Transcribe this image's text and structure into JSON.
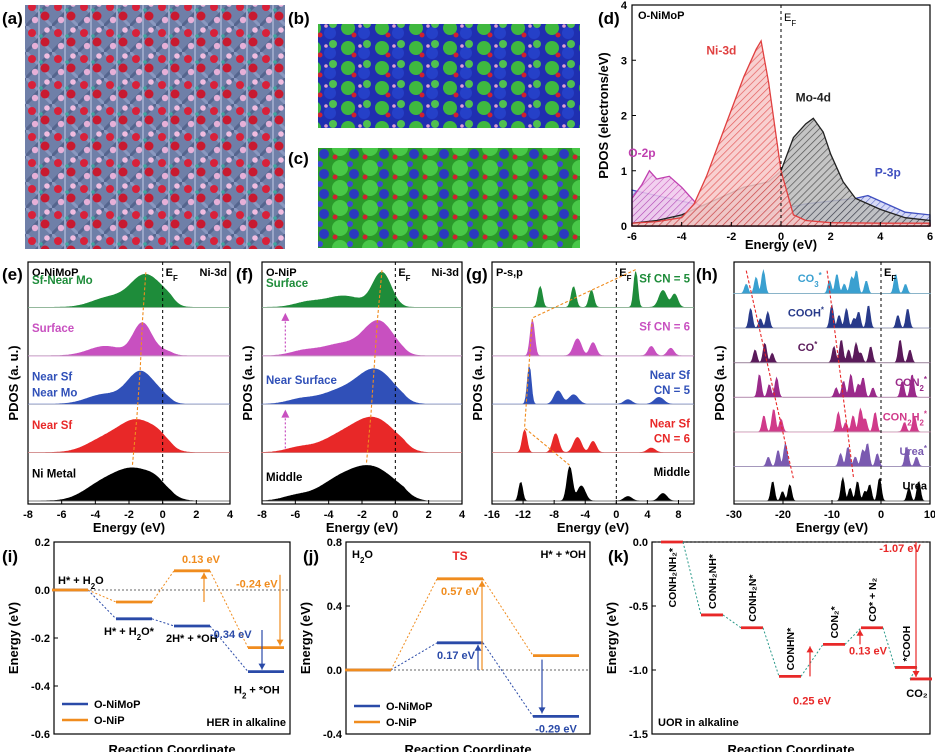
{
  "panels": {
    "a": {
      "label": "(a)"
    },
    "b": {
      "label": "(b)"
    },
    "c": {
      "label": "(c)"
    },
    "d": {
      "label": "(d)"
    },
    "e": {
      "label": "(e)"
    },
    "f": {
      "label": "(f)"
    },
    "g": {
      "label": "(g)"
    },
    "h": {
      "label": "(h)"
    },
    "i": {
      "label": "(i)"
    },
    "j": {
      "label": "(j)"
    },
    "k": {
      "label": "(k)"
    }
  },
  "colors": {
    "ni": "#e04040",
    "mo": "#222222",
    "o": "#c040b0",
    "p": "#4050c0",
    "green": "#1e8c3a",
    "magenta": "#c850c0",
    "blue": "#3050b8",
    "red": "#e82828",
    "black": "#000000",
    "nimop": "#2a4aa8",
    "nip": "#f08c1e"
  },
  "chart_data": [
    {
      "panel": "d",
      "type": "area",
      "title": "O-NiMoP",
      "xlabel": "Energy (eV)",
      "ylabel": "PDOS (electrons/eV)",
      "xlim": [
        -6,
        6
      ],
      "ylim": [
        0,
        4
      ],
      "xticks": [
        "-6",
        "-4",
        "-2",
        "0",
        "2",
        "4",
        "6"
      ],
      "yticks": [
        "0",
        "1",
        "2",
        "3",
        "4"
      ],
      "fermi_label": "E",
      "fermi_sub": "F",
      "series": [
        {
          "name": "Ni-3d",
          "x": [
            -6,
            -5,
            -4,
            -3.5,
            -3,
            -2.5,
            -2,
            -1.5,
            -1,
            -0.8,
            -0.5,
            0,
            0.5,
            1,
            2,
            4,
            6
          ],
          "y": [
            0.05,
            0.08,
            0.15,
            0.4,
            0.9,
            1.5,
            2.1,
            2.7,
            3.2,
            3.35,
            2.6,
            1.0,
            0.2,
            0.1,
            0.06,
            0.05,
            0.05
          ]
        },
        {
          "name": "Mo-4d",
          "x": [
            -6,
            -5,
            -4,
            -3,
            -2,
            -1.5,
            -1,
            -0.5,
            0,
            0.5,
            1,
            1.3,
            1.7,
            2,
            2.5,
            3,
            4,
            5,
            6
          ],
          "y": [
            0.05,
            0.1,
            0.2,
            0.4,
            0.6,
            0.7,
            0.75,
            0.8,
            1.0,
            1.6,
            1.85,
            1.95,
            1.7,
            1.3,
            0.8,
            0.5,
            0.3,
            0.15,
            0.1
          ]
        },
        {
          "name": "O-2p",
          "x": [
            -6,
            -5.6,
            -5.3,
            -5,
            -4.5,
            -4,
            -3.5,
            -3,
            -2,
            -1,
            0,
            2,
            4,
            6
          ],
          "y": [
            0.5,
            0.75,
            1.0,
            0.85,
            0.9,
            0.7,
            0.45,
            0.25,
            0.12,
            0.08,
            0.05,
            0.04,
            0.03,
            0.03
          ]
        },
        {
          "name": "P-3p",
          "x": [
            -6,
            -5,
            -4,
            -3,
            -2,
            -1,
            0,
            1,
            2,
            3,
            3.5,
            4,
            5,
            6
          ],
          "y": [
            0.65,
            0.55,
            0.45,
            0.35,
            0.3,
            0.25,
            0.3,
            0.4,
            0.45,
            0.5,
            0.55,
            0.45,
            0.25,
            0.2
          ]
        }
      ]
    },
    {
      "panel": "e",
      "type": "area",
      "title": "O-NiMoP",
      "orbital": "Ni-3d",
      "xlabel": "Energy (eV)",
      "ylabel": "PDOS (a. u.)",
      "xlim": [
        -8,
        4
      ],
      "xticks": [
        "-8",
        "-6",
        "-4",
        "-2",
        "0",
        "2",
        "4"
      ],
      "fermi_label": "E",
      "fermi_sub": "F",
      "series": [
        {
          "name": "Sf-Near Mo",
          "color": "#1e8c3a",
          "peak": -1.0
        },
        {
          "name": "Surface",
          "color": "#c850c0",
          "peak": -1.2
        },
        {
          "name": "Near Sf Near Mo",
          "color": "#3050b8",
          "peak": -1.3
        },
        {
          "name": "Near Sf",
          "color": "#e82828",
          "peak": -1.5
        },
        {
          "name": "Ni Metal",
          "color": "#000000",
          "peak": -1.7
        }
      ]
    },
    {
      "panel": "f",
      "type": "area",
      "title": "O-NiP",
      "orbital": "Ni-3d",
      "xlabel": "Energy (eV)",
      "ylabel": "PDOS (a. u.)",
      "xlim": [
        -8,
        4
      ],
      "xticks": [
        "-8",
        "-6",
        "-4",
        "-2",
        "0",
        "2",
        "4"
      ],
      "fermi_label": "E",
      "fermi_sub": "F",
      "series": [
        {
          "name": "Surface",
          "color": "#1e8c3a",
          "peak": -0.8
        },
        {
          "name": "",
          "color": "#c850c0",
          "peak": -1.0
        },
        {
          "name": "Near Surface",
          "color": "#3050b8",
          "peak": -1.2
        },
        {
          "name": "",
          "color": "#e82828",
          "peak": -1.3
        },
        {
          "name": "Middle",
          "color": "#000000",
          "peak": -1.5
        }
      ]
    },
    {
      "panel": "g",
      "type": "area",
      "title": "P-s,p",
      "xlabel": "Energy (eV)",
      "ylabel": "PDOS (a. u.)",
      "xlim": [
        -16,
        10
      ],
      "xticks": [
        "-16",
        "-12",
        "-8",
        "-4",
        "0",
        "4",
        "8"
      ],
      "fermi_label": "E",
      "fermi_sub": "F",
      "series": [
        {
          "name": "Sf CN = 5",
          "color": "#1e8c3a"
        },
        {
          "name": "Sf CN = 6",
          "color": "#c850c0"
        },
        {
          "name": "Near Sf CN = 5",
          "name_line1": "Near Sf",
          "name_line2": "CN = 5",
          "color": "#3050b8"
        },
        {
          "name": "Near Sf CN = 6",
          "name_line1": "Near Sf",
          "name_line2": "CN = 6",
          "color": "#e82828"
        },
        {
          "name": "Middle",
          "color": "#000000"
        }
      ]
    },
    {
      "panel": "h",
      "type": "area",
      "xlabel": "Energy (eV)",
      "ylabel": "PDOS (a. u.)",
      "xlim": [
        -30,
        10
      ],
      "xticks": [
        "-30",
        "-20",
        "-10",
        "0",
        "10"
      ],
      "fermi_label": "E",
      "fermi_sub": "F",
      "series": [
        {
          "name": "CO3*",
          "label_main": "CO",
          "label_sub": "3",
          "label_sup": "*",
          "color": "#3aa0d0"
        },
        {
          "name": "COOH*",
          "label_main": "COOH",
          "label_sub": "",
          "label_sup": "*",
          "color": "#283a8a"
        },
        {
          "name": "CO*",
          "label_main": "CO",
          "label_sub": "",
          "label_sup": "*",
          "color": "#5a1a5a"
        },
        {
          "name": "CON2*",
          "label_main": "CON",
          "label_sub": "2",
          "label_sup": "*",
          "color": "#9a2a8a"
        },
        {
          "name": "CON2H2*",
          "label_main": "CON",
          "label_sub": "2",
          "label_main2": "H",
          "label_sub2": "2",
          "label_sup": "*",
          "color": "#d03a8a"
        },
        {
          "name": "Urea*",
          "label_main": "Urea",
          "label_sub": "",
          "label_sup": "*",
          "color": "#7a5ab0"
        },
        {
          "name": "Urea",
          "label_main": "Urea",
          "label_sub": "",
          "label_sup": "",
          "color": "#000000"
        }
      ]
    },
    {
      "panel": "i",
      "type": "line",
      "xlabel": "Reaction Coordinate",
      "ylabel": "Energy (eV)",
      "ylim": [
        -0.6,
        0.2
      ],
      "yticks": [
        "-0.6",
        "-0.4",
        "-0.2",
        "0.0",
        "0.2"
      ],
      "note": "HER in alkaline",
      "states": [
        "H* + H2O",
        "H* + H2O*",
        "2H* + *OH",
        "H2 + *OH"
      ],
      "state_labels": {
        "s0": {
          "main": "H* + H",
          "sub": "2",
          "tail": "O"
        },
        "s1": {
          "main": "H* + H",
          "sub": "2",
          "tail": "O*"
        },
        "s2": {
          "main": "2H* + *OH",
          "sub": "",
          "tail": ""
        },
        "s3": {
          "main": "H",
          "sub": "2",
          "tail": " + *OH"
        }
      },
      "series": [
        {
          "name": "O-NiMoP",
          "color": "#2a4aa8",
          "values": [
            0.0,
            -0.12,
            -0.15,
            -0.34
          ]
        },
        {
          "name": "O-NiP",
          "color": "#f08c1e",
          "values": [
            0.0,
            -0.05,
            0.08,
            -0.24
          ]
        }
      ],
      "annotations": [
        "0.13 eV",
        "-0.24 eV",
        "-0.34 eV"
      ]
    },
    {
      "panel": "j",
      "type": "line",
      "xlabel": "Reaction Coordinate",
      "ylabel": "Energy (eV)",
      "ylim": [
        -0.4,
        0.8
      ],
      "yticks": [
        "-0.4",
        "0.0",
        "0.4",
        "0.8"
      ],
      "states": [
        "H2O",
        "TS",
        "H* + *OH"
      ],
      "state_labels": {
        "s0": {
          "main": "H",
          "sub": "2",
          "tail": "O"
        },
        "s1": {
          "main": "TS",
          "sub": "",
          "tail": ""
        },
        "s2": {
          "main": "H* + *OH",
          "sub": "",
          "tail": ""
        }
      },
      "series": [
        {
          "name": "O-NiMoP",
          "color": "#2a4aa8",
          "values": [
            0.0,
            0.17,
            -0.29
          ]
        },
        {
          "name": "O-NiP",
          "color": "#f08c1e",
          "values": [
            0.0,
            0.57,
            0.09
          ]
        }
      ],
      "annotations": [
        "0.57 eV",
        "0.17 eV",
        "-0.29 eV"
      ]
    },
    {
      "panel": "k",
      "type": "line",
      "xlabel": "Reaction Coordinate",
      "ylabel": "Energy (eV)",
      "ylim": [
        -1.5,
        0.0
      ],
      "yticks": [
        "-1.5",
        "-1.0",
        "-0.5",
        "0.0"
      ],
      "note": "UOR in alkaline",
      "states": [
        "CONH2NH2*",
        "CONH2NH*",
        "CONH2N*",
        "CONHN*",
        "CON2*",
        "CO* + N2",
        "*COOH",
        "CO2"
      ],
      "state_labels": {
        "s0": "CONH₂NH₂*",
        "s1": "CONH₂NH*",
        "s2": "CONH₂N*",
        "s3": "CONHN*",
        "s4": "CON₂*",
        "s5": "CO* + N₂",
        "s6": "*COOH",
        "s7": "CO₂"
      },
      "series": [
        {
          "name": "O-NiMoP",
          "color": "#e82828",
          "values": [
            0.0,
            -0.57,
            -0.67,
            -1.05,
            -0.8,
            -0.67,
            -0.98,
            -1.07
          ]
        }
      ],
      "annotations": [
        "-1.07 eV",
        "0.13 eV",
        "0.25 eV"
      ]
    }
  ]
}
